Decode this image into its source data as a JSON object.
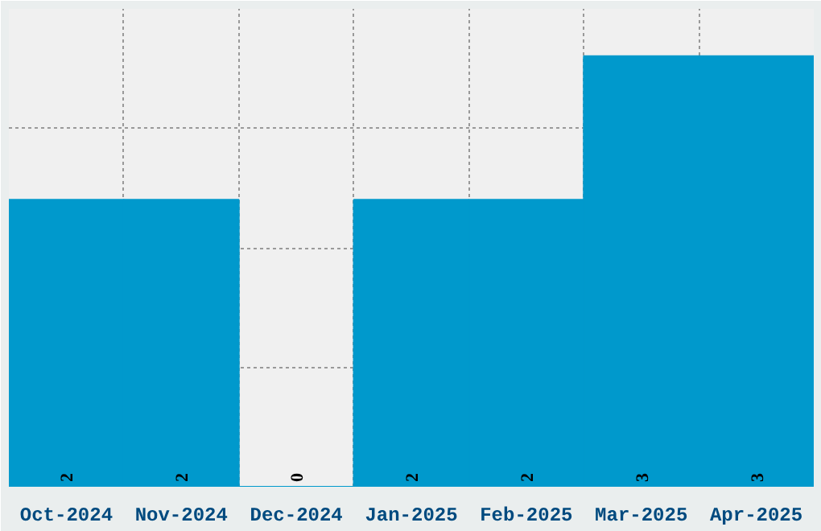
{
  "chart_data": {
    "type": "bar",
    "categories": [
      "Oct-2024",
      "Nov-2024",
      "Dec-2024",
      "Jan-2025",
      "Feb-2025",
      "Mar-2025",
      "Apr-2025"
    ],
    "values": [
      2,
      2,
      0,
      2,
      2,
      3,
      3
    ],
    "color": "#0099cc",
    "ylim": [
      0,
      3.33
    ],
    "tick_labels": "x",
    "grid": true,
    "data_labels": true
  }
}
